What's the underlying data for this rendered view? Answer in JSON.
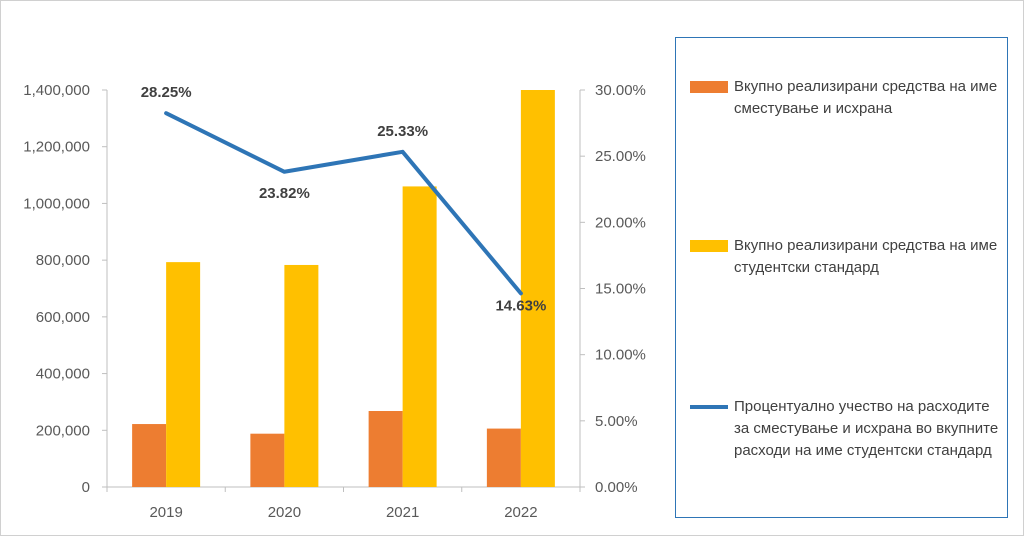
{
  "chart_data": {
    "type": "bar",
    "categories": [
      "2019",
      "2020",
      "2021",
      "2022"
    ],
    "series": [
      {
        "name": "Вкупно реализирани средства на име сместување и исхрана",
        "type": "bar",
        "axis": "left",
        "color": "#ed7d31",
        "values": [
          222000,
          188000,
          268000,
          206000
        ]
      },
      {
        "name": "Вкупно реализирани средства на име студентски стандард",
        "type": "bar",
        "axis": "left",
        "color": "#ffc000",
        "values": [
          793000,
          783000,
          1060000,
          1400000
        ]
      },
      {
        "name": "Процентуално учество на расходите за сместување и исхрана во вкупните расходи на име студентски стандард",
        "type": "line",
        "axis": "right",
        "color": "#2e75b6",
        "values": [
          28.25,
          23.82,
          25.33,
          14.63
        ],
        "data_labels": [
          "28.25%",
          "23.82%",
          "25.33%",
          "14.63%"
        ]
      }
    ],
    "y_left": {
      "ylim": [
        0,
        1400000
      ],
      "ticks": [
        0,
        200000,
        400000,
        600000,
        800000,
        1000000,
        1200000,
        1400000
      ],
      "tick_labels": [
        "0",
        "200,000",
        "400,000",
        "600,000",
        "800,000",
        "1,000,000",
        "1,200,000",
        "1,400,000"
      ]
    },
    "y_right": {
      "ylim": [
        0,
        30
      ],
      "ticks": [
        0,
        5,
        10,
        15,
        20,
        25,
        30
      ],
      "tick_labels": [
        "0.00%",
        "5.00%",
        "10.00%",
        "15.00%",
        "20.00%",
        "25.00%",
        "30.00%"
      ]
    },
    "title": "",
    "xlabel": "",
    "ylabel": "",
    "grid": false,
    "legend_position": "right"
  }
}
